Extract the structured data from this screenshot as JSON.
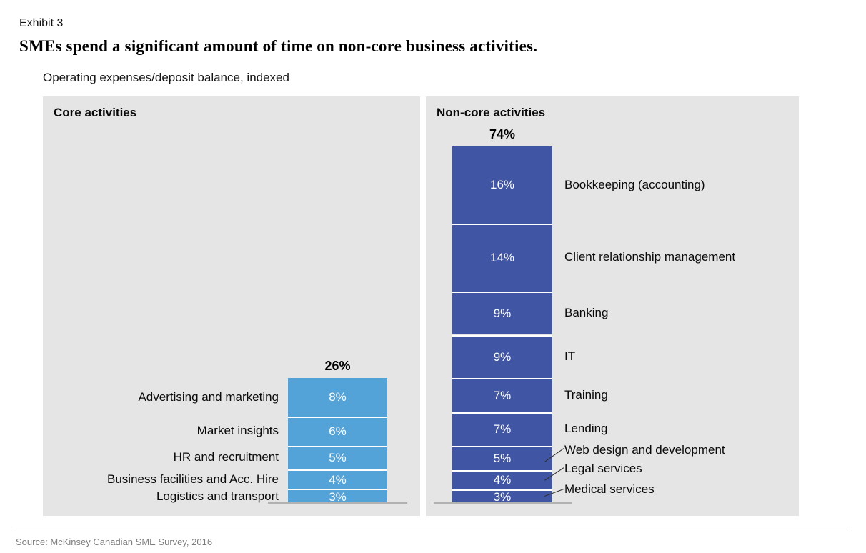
{
  "exhibit_label": "Exhibit 3",
  "title": "SMEs spend a significant amount of time on non-core business activities.",
  "subtitle": "Operating expenses/deposit balance, indexed",
  "source_note": "Source: McKinsey Canadian SME Survey, 2016",
  "colors": {
    "core_bar": "#53A3D9",
    "noncore_bar": "#4056A4",
    "panel_background": "#E5E5E5",
    "baseline_gray": "#B2B2B2",
    "segment_value_text": "#FFFFFF"
  },
  "chart_data": [
    {
      "type": "bar",
      "stacked": true,
      "orientation": "vertical",
      "title": "Core activities",
      "total": 26,
      "total_label": "26%",
      "unit": "%",
      "label_side": "left",
      "bar_color": "#53A3D9",
      "categories": [
        "Advertising and marketing",
        "Market insights",
        "HR and recruitment",
        "Business facilities and Acc. Hire",
        "Logistics and transport"
      ],
      "values": [
        8,
        6,
        5,
        4,
        3
      ],
      "value_labels": [
        "8%",
        "6%",
        "5%",
        "4%",
        "3%"
      ]
    },
    {
      "type": "bar",
      "stacked": true,
      "orientation": "vertical",
      "title": "Non-core activities",
      "total": 74,
      "total_label": "74%",
      "unit": "%",
      "label_side": "right",
      "bar_color": "#4056A4",
      "categories": [
        "Bookkeeping (accounting)",
        "Client relationship management",
        "Banking",
        "IT",
        "Training",
        "Lending",
        "Web design and development",
        "Legal services",
        "Medical services"
      ],
      "values": [
        16,
        14,
        9,
        9,
        7,
        7,
        5,
        4,
        3
      ],
      "value_labels": [
        "16%",
        "14%",
        "9%",
        "9%",
        "7%",
        "7%",
        "5%",
        "4%",
        "3%"
      ],
      "leader_line_categories": [
        "Web design and development",
        "Legal services",
        "Medical services"
      ]
    }
  ]
}
